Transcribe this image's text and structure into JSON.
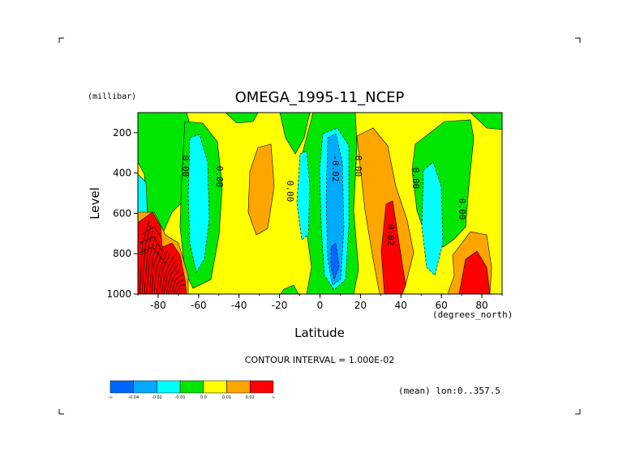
{
  "chart_data": {
    "type": "contour",
    "title": "OMEGA_1995-11_NCEP",
    "xlabel": "Latitude",
    "xunits": "(degrees_north)",
    "ylabel": "Level",
    "yunits": "(millibar)",
    "xlim": [
      -90,
      90
    ],
    "ylim": [
      1000,
      100
    ],
    "x_ticks": [
      -80,
      -60,
      -40,
      -20,
      0,
      20,
      40,
      60,
      80
    ],
    "y_ticks": [
      200,
      400,
      600,
      800,
      1000
    ],
    "contour_interval_text": "CONTOUR INTERVAL = 1.000E-02",
    "subtitle": "(mean) lon:0..357.5",
    "contour_labels": [
      {
        "text": "0.00",
        "lat": -70,
        "level": 410
      },
      {
        "text": "0.00",
        "lat": -54,
        "level": 420
      },
      {
        "text": "0.00",
        "lat": -22,
        "level": 500
      },
      {
        "text": "-0.02",
        "lat": 6,
        "level": 390
      },
      {
        "text": "0.00",
        "lat": 16,
        "level": 390
      },
      {
        "text": "0.02",
        "lat": 33,
        "level": 710
      },
      {
        "text": "0.00",
        "lat": 48,
        "level": 430
      },
      {
        "text": "0.00",
        "lat": 69,
        "level": 580
      }
    ],
    "legend": {
      "boundaries": [
        "-∞",
        "-0.04",
        "-0.02",
        "-0.01",
        "0.0",
        "0.01",
        "0.02",
        "∞"
      ],
      "colors": [
        "#0066ff",
        "#00aaff",
        "#00ffff",
        "#00e600",
        "#ffff00",
        "#ffa500",
        "#ff0000"
      ]
    },
    "regions": [
      {
        "name": "yellow-background",
        "color": "#ffff00"
      },
      {
        "name": "red-antarctic",
        "color": "#ff0000"
      },
      {
        "name": "cyan-south",
        "color": "#00ffff"
      },
      {
        "name": "blue-equator",
        "color": "#00aaff"
      },
      {
        "name": "orange-north",
        "color": "#ffa500"
      },
      {
        "name": "red-north",
        "color": "#ff0000"
      }
    ]
  }
}
